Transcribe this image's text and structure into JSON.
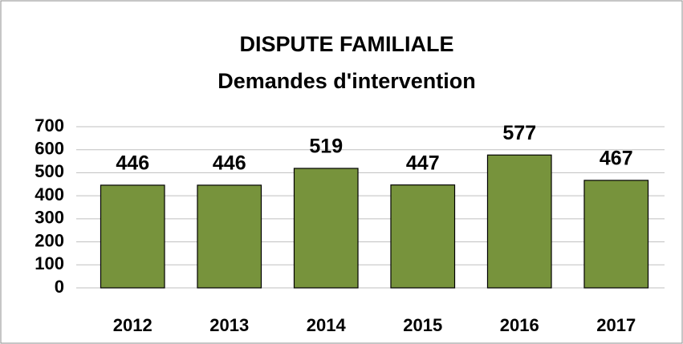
{
  "chart_data": {
    "type": "bar",
    "title": "DISPUTE FAMILIALE",
    "subtitle": "Demandes d'intervention",
    "categories": [
      "2012",
      "2013",
      "2014",
      "2015",
      "2016",
      "2017"
    ],
    "values": [
      446,
      446,
      519,
      447,
      577,
      467
    ],
    "color": "#77933c",
    "ylim": [
      0,
      700
    ],
    "yticks": [
      0,
      100,
      200,
      300,
      400,
      500,
      600,
      700
    ],
    "grid": true
  }
}
